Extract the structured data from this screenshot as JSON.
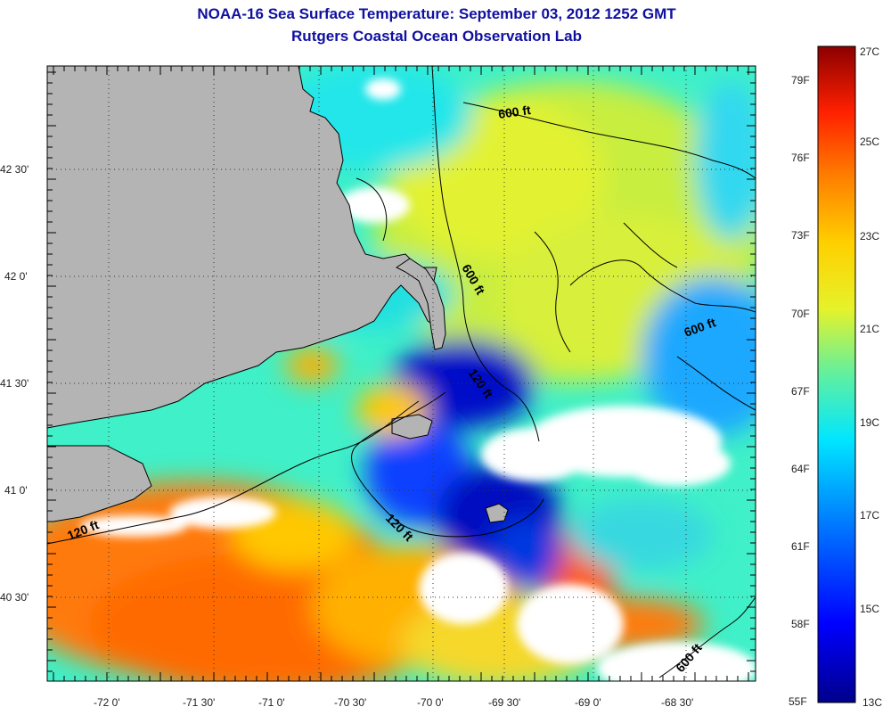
{
  "header": {
    "title": "NOAA-16 Sea Surface Temperature:  September 03, 2012 1252 GMT",
    "subtitle": "Rutgers Coastal Ocean Observation Lab"
  },
  "map": {
    "lon_ticks": [
      "-72 0'",
      "-71 30'",
      "-71 0'",
      "-70 30'",
      "-70 0'",
      "-69 30'",
      "-69 0'",
      "-68 30'"
    ],
    "lat_ticks": [
      "42 30'",
      "42 0'",
      "41 30'",
      "41 0'",
      "40 30'"
    ],
    "contour_labels": [
      "600 ft",
      "600 ft",
      "600 ft",
      "120 ft",
      "120 ft",
      "120 ft",
      "600 ft"
    ]
  },
  "colorbar": {
    "fahrenheit_labels": [
      "79F",
      "76F",
      "73F",
      "70F",
      "67F",
      "64F",
      "61F",
      "58F",
      "55F"
    ],
    "celsius_labels": [
      "27C",
      "25C",
      "23C",
      "21C",
      "19C",
      "17C",
      "15C",
      "13C"
    ]
  },
  "colors": {
    "land": "#b4b4b4",
    "cloud": "#ffffff",
    "title": "#1010a0",
    "cold": "#00008c",
    "warm": "#ff6a00",
    "mid": "#e6f22a"
  }
}
